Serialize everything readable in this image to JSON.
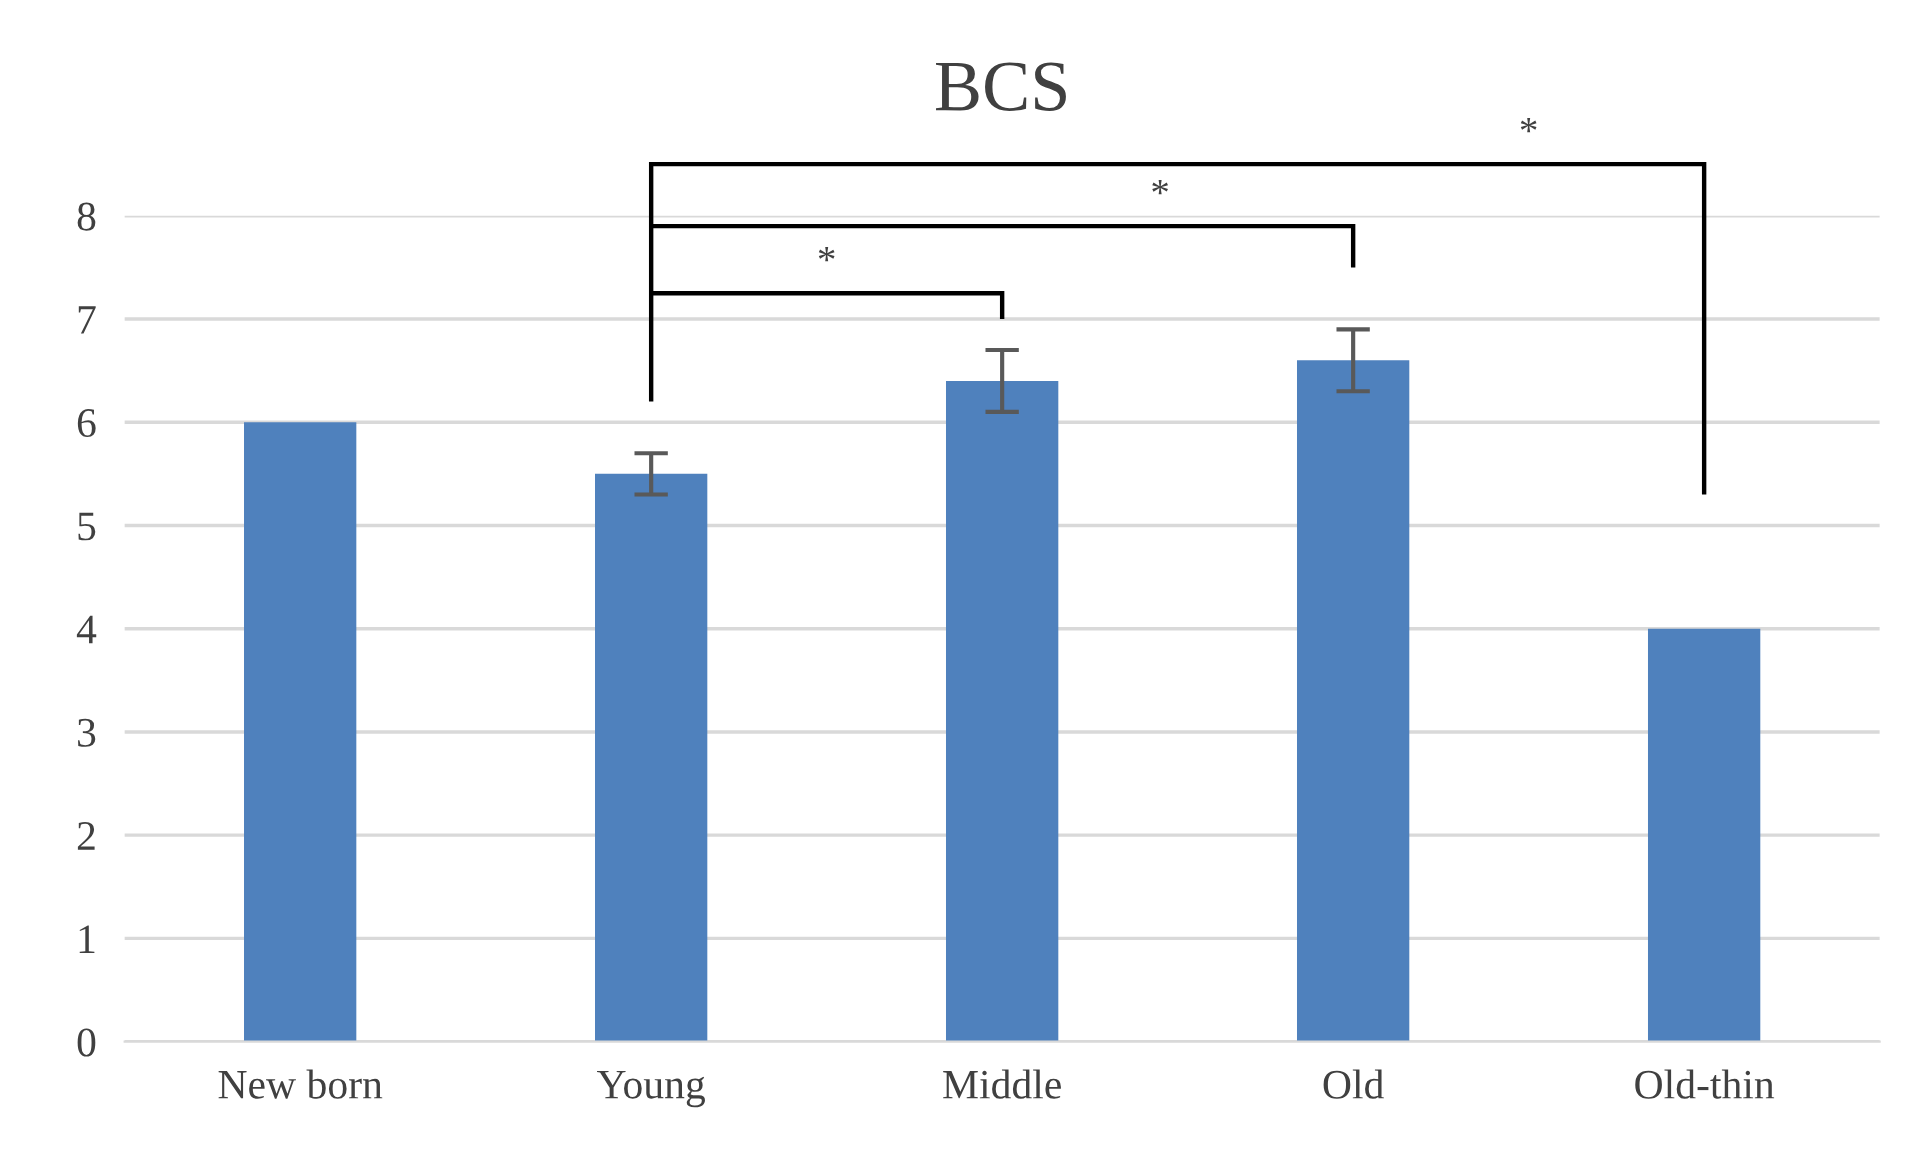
{
  "chart_data": {
    "type": "bar",
    "title": "BCS",
    "categories": [
      "New born",
      "Young",
      "Middle",
      "Old",
      "Old-thin"
    ],
    "values": [
      6.0,
      5.5,
      6.4,
      6.6,
      4.0
    ],
    "errors": [
      null,
      0.2,
      0.3,
      0.3,
      null
    ],
    "color": "#4f81bd",
    "ylim": [
      0,
      8
    ],
    "yticks": [
      0,
      1,
      2,
      3,
      4,
      5,
      6,
      7,
      8
    ],
    "grid": "y",
    "annotations": [
      "*",
      "*",
      "*"
    ]
  }
}
